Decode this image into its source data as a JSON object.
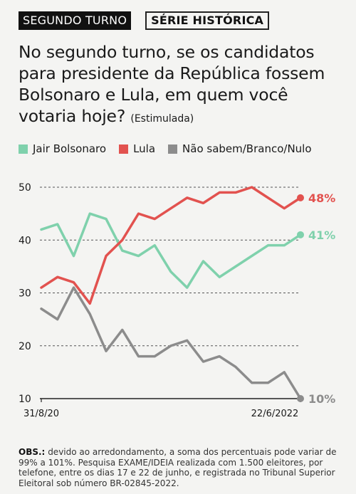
{
  "tags": {
    "segundo_turno": "SEGUNDO TURNO",
    "serie_historica": "SÉRIE HISTÓRICA"
  },
  "question": {
    "text": "No segundo turno, se os candidatos para presidente da República fossem Bolsonaro e Lula, em quem você votaria hoje?",
    "qualifier": "(Estimulada)"
  },
  "colors": {
    "bolsonaro": "#7fd1ac",
    "lula": "#e2524f",
    "nao_sabem": "#8c8c8c",
    "grid": "#555555"
  },
  "notes": {
    "label": "OBS.:",
    "text": "devido ao arredondamento, a soma dos percentuais pode variar de 99% a 101%. Pesquisa EXAME/IDEIA realizada com 1.500 eleitores, por telefone, entre os dias 17 e 22 de junho, e registrada no Tribunal Superior Eleitoral sob número BR-02845-2022."
  },
  "chart_data": {
    "type": "line",
    "ylim": [
      10,
      50
    ],
    "y_ticks": [
      "10",
      "20",
      "30",
      "40",
      "50"
    ],
    "x_labels": {
      "first": "31/8/20",
      "last": "22/6/2022"
    },
    "grid": "dashed horizontal",
    "legend_position": "top",
    "series": [
      {
        "name": "Jair Bolsonaro",
        "color_key": "bolsonaro",
        "end_label": "41%",
        "values": [
          42,
          43,
          37,
          45,
          44,
          38,
          37,
          39,
          34,
          31,
          36,
          33,
          35,
          37,
          39,
          39,
          41
        ]
      },
      {
        "name": "Lula",
        "color_key": "lula",
        "end_label": "48%",
        "values": [
          31,
          33,
          32,
          28,
          37,
          40,
          45,
          44,
          46,
          48,
          47,
          49,
          49,
          50,
          48,
          46,
          48
        ]
      },
      {
        "name": "Não sabem/Branco/Nulo",
        "color_key": "nao_sabem",
        "end_label": "10%",
        "values": [
          27,
          25,
          31,
          26,
          19,
          23,
          18,
          18,
          20,
          21,
          17,
          18,
          16,
          13,
          13,
          15,
          10
        ]
      }
    ]
  }
}
